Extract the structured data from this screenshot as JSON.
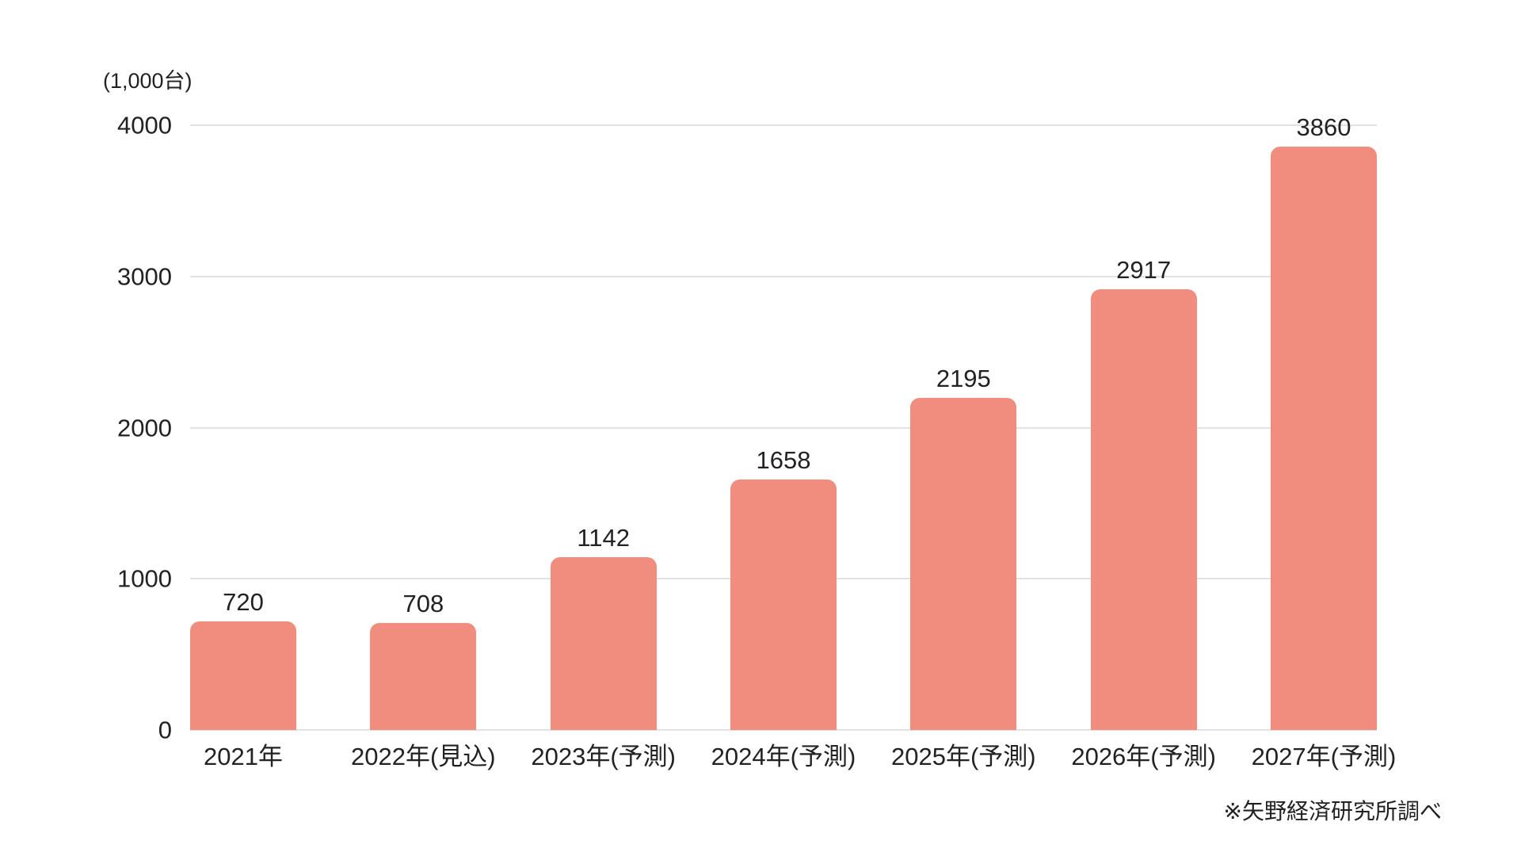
{
  "page": {
    "background": "#ffffff"
  },
  "chart_data": {
    "type": "bar",
    "unit_label": "(1,000台)",
    "categories": [
      "2021年",
      "2022年(見込)",
      "2023年(予測)",
      "2024年(予測)",
      "2025年(予測)",
      "2026年(予測)",
      "2027年(予測)"
    ],
    "values": [
      720,
      708,
      1142,
      1658,
      2195,
      2917,
      3860
    ],
    "value_labels_shown": true,
    "y_ticks": [
      0,
      1000,
      2000,
      3000,
      4000
    ],
    "ylim": [
      0,
      4000
    ],
    "grid": "horizontal",
    "legend": "none",
    "bar_color": "#F08D7E",
    "gridline_color": "#E2E2E2",
    "text_color": "#222222",
    "source_note": "※矢野経済研究所調べ"
  }
}
